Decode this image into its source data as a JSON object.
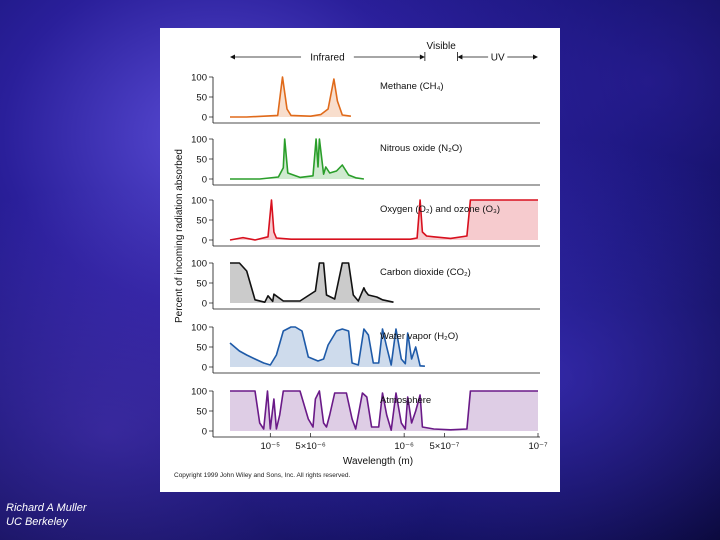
{
  "credit": {
    "line1": "Richard A Muller",
    "line2": "UC Berkeley"
  },
  "copyright": "Copyright 1999 John Wiley and Sons, Inc. All rights reserved.",
  "chart_data": {
    "type": "area",
    "ylabel": "Percent of incoming radiation absorbed",
    "xlabel": "Wavelength (m)",
    "x_scale": "log-reversed",
    "x_ticks": [
      "10⁻⁵",
      "5×10⁻⁶",
      "10⁻⁶",
      "5×10⁻⁷",
      "10⁻⁷"
    ],
    "x_tick_values": [
      1e-05,
      5e-06,
      1e-06,
      5e-07,
      1e-07
    ],
    "y_ticks": [
      "100",
      "50",
      "0"
    ],
    "ylim": [
      0,
      100
    ],
    "bands": [
      {
        "label": "Infrared",
        "from": 2e-05,
        "to": 7e-07
      },
      {
        "label": "Visible",
        "from": 7e-07,
        "to": 4e-07
      },
      {
        "label": "UV",
        "from": 4e-07,
        "to": 1e-07
      }
    ],
    "series": [
      {
        "name": "Methane (CH₄)",
        "color": "#e06a1a",
        "points": [
          [
            2e-05,
            0
          ],
          [
            1.5e-05,
            0
          ],
          [
            1.12e-05,
            2
          ],
          [
            8.8e-06,
            4
          ],
          [
            8.1e-06,
            100
          ],
          [
            7.5e-06,
            20
          ],
          [
            7e-06,
            4
          ],
          [
            5e-06,
            2
          ],
          [
            4.2e-06,
            6
          ],
          [
            3.7e-06,
            20
          ],
          [
            3.35e-06,
            95
          ],
          [
            3.15e-06,
            40
          ],
          [
            2.9e-06,
            5
          ],
          [
            2.5e-06,
            2
          ]
        ]
      },
      {
        "name": "Nitrous oxide (N₂O)",
        "color": "#2a9e2a",
        "points": [
          [
            2e-05,
            0
          ],
          [
            1.2e-05,
            0
          ],
          [
            8.7e-06,
            5
          ],
          [
            8e-06,
            28
          ],
          [
            7.8e-06,
            100
          ],
          [
            7.4e-06,
            15
          ],
          [
            6e-06,
            4
          ],
          [
            4.8e-06,
            8
          ],
          [
            4.55e-06,
            100
          ],
          [
            4.4e-06,
            30
          ],
          [
            4.3e-06,
            100
          ],
          [
            4e-06,
            12
          ],
          [
            3.85e-06,
            30
          ],
          [
            3.6e-06,
            15
          ],
          [
            3.2e-06,
            20
          ],
          [
            2.9e-06,
            35
          ],
          [
            2.6e-06,
            10
          ],
          [
            2.3e-06,
            3
          ],
          [
            2e-06,
            0
          ]
        ]
      },
      {
        "name": "Oxygen (O₂) and ozone (O₃)",
        "color": "#d8101e",
        "points": [
          [
            2e-05,
            0
          ],
          [
            1.6e-05,
            6
          ],
          [
            1.3e-05,
            0
          ],
          [
            1.04e-05,
            8
          ],
          [
            9.8e-06,
            100
          ],
          [
            9.4e-06,
            20
          ],
          [
            9e-06,
            5
          ],
          [
            7e-06,
            2
          ],
          [
            3e-06,
            2
          ],
          [
            1.5e-06,
            2
          ],
          [
            9e-07,
            2
          ],
          [
            8e-07,
            5
          ],
          [
            7.6e-07,
            100
          ],
          [
            7.3e-07,
            20
          ],
          [
            6.8e-07,
            10
          ],
          [
            6e-07,
            8
          ],
          [
            4.5e-07,
            4
          ],
          [
            3.4e-07,
            10
          ],
          [
            3.2e-07,
            100
          ],
          [
            2.7e-07,
            100
          ],
          [
            1.1e-07,
            100
          ],
          [
            1e-07,
            100
          ]
        ]
      },
      {
        "name": "Carbon dioxide (CO₂)",
        "color": "#111111",
        "points": [
          [
            2e-05,
            100
          ],
          [
            1.7e-05,
            100
          ],
          [
            1.5e-05,
            80
          ],
          [
            1.3e-05,
            8
          ],
          [
            1.1e-05,
            2
          ],
          [
            1.04e-05,
            18
          ],
          [
            9.6e-06,
            4
          ],
          [
            9.4e-06,
            22
          ],
          [
            8e-06,
            5
          ],
          [
            6e-06,
            5
          ],
          [
            4.6e-06,
            30
          ],
          [
            4.3e-06,
            100
          ],
          [
            4e-06,
            100
          ],
          [
            3.8e-06,
            20
          ],
          [
            3.3e-06,
            10
          ],
          [
            2.9e-06,
            100
          ],
          [
            2.6e-06,
            100
          ],
          [
            2.4e-06,
            20
          ],
          [
            2.2e-06,
            5
          ],
          [
            2e-06,
            38
          ],
          [
            1.95e-06,
            30
          ],
          [
            1.85e-06,
            20
          ],
          [
            1.6e-06,
            15
          ],
          [
            1.45e-06,
            8
          ],
          [
            1.2e-06,
            2
          ]
        ]
      },
      {
        "name": "Water vapor (H₂O)",
        "color": "#1e5aa8",
        "points": [
          [
            2e-05,
            60
          ],
          [
            1.7e-05,
            40
          ],
          [
            1.5e-05,
            30
          ],
          [
            1.3e-05,
            20
          ],
          [
            1.12e-05,
            10
          ],
          [
            1e-05,
            5
          ],
          [
            9e-06,
            30
          ],
          [
            8e-06,
            90
          ],
          [
            7e-06,
            100
          ],
          [
            6.5e-06,
            100
          ],
          [
            5.8e-06,
            90
          ],
          [
            5.2e-06,
            25
          ],
          [
            4.4e-06,
            15
          ],
          [
            4e-06,
            20
          ],
          [
            3.7e-06,
            55
          ],
          [
            3.2e-06,
            90
          ],
          [
            2.9e-06,
            95
          ],
          [
            2.6e-06,
            90
          ],
          [
            2.45e-06,
            10
          ],
          [
            2.2e-06,
            5
          ],
          [
            2e-06,
            95
          ],
          [
            1.85e-06,
            80
          ],
          [
            1.7e-06,
            10
          ],
          [
            1.55e-06,
            10
          ],
          [
            1.45e-06,
            95
          ],
          [
            1.35e-06,
            50
          ],
          [
            1.25e-06,
            5
          ],
          [
            1.15e-06,
            95
          ],
          [
            1.05e-06,
            20
          ],
          [
            9.8e-07,
            8
          ],
          [
            9.4e-07,
            85
          ],
          [
            8.8e-07,
            20
          ],
          [
            8.2e-07,
            50
          ],
          [
            7.6e-07,
            3
          ],
          [
            7e-07,
            2
          ]
        ]
      },
      {
        "name": "Atmosphere",
        "color": "#6a1a88",
        "points": [
          [
            2e-05,
            100
          ],
          [
            1.7e-05,
            100
          ],
          [
            1.3e-05,
            100
          ],
          [
            1.2e-05,
            20
          ],
          [
            1.12e-05,
            5
          ],
          [
            1.05e-05,
            100
          ],
          [
            1e-05,
            5
          ],
          [
            9.4e-06,
            80
          ],
          [
            9e-06,
            5
          ],
          [
            8.5e-06,
            40
          ],
          [
            8e-06,
            100
          ],
          [
            7e-06,
            100
          ],
          [
            6e-06,
            100
          ],
          [
            5.2e-06,
            30
          ],
          [
            4.8e-06,
            10
          ],
          [
            4.6e-06,
            80
          ],
          [
            4.3e-06,
            100
          ],
          [
            4e-06,
            20
          ],
          [
            3.8e-06,
            10
          ],
          [
            3.6e-06,
            40
          ],
          [
            3.3e-06,
            95
          ],
          [
            3e-06,
            95
          ],
          [
            2.7e-06,
            95
          ],
          [
            2.45e-06,
            30
          ],
          [
            2.3e-06,
            5
          ],
          [
            2.05e-06,
            95
          ],
          [
            1.9e-06,
            85
          ],
          [
            1.75e-06,
            10
          ],
          [
            1.55e-06,
            10
          ],
          [
            1.45e-06,
            95
          ],
          [
            1.35e-06,
            40
          ],
          [
            1.25e-06,
            2
          ],
          [
            1.15e-06,
            95
          ],
          [
            1.05e-06,
            20
          ],
          [
            9.8e-07,
            5
          ],
          [
            9.4e-07,
            85
          ],
          [
            8.8e-07,
            20
          ],
          [
            8.2e-07,
            50
          ],
          [
            7.6e-07,
            90
          ],
          [
            7.3e-07,
            10
          ],
          [
            6e-07,
            5
          ],
          [
            4.5e-07,
            3
          ],
          [
            3.4e-07,
            5
          ],
          [
            3.2e-07,
            100
          ],
          [
            2.7e-07,
            100
          ],
          [
            1.1e-07,
            100
          ],
          [
            1e-07,
            100
          ]
        ]
      }
    ]
  }
}
